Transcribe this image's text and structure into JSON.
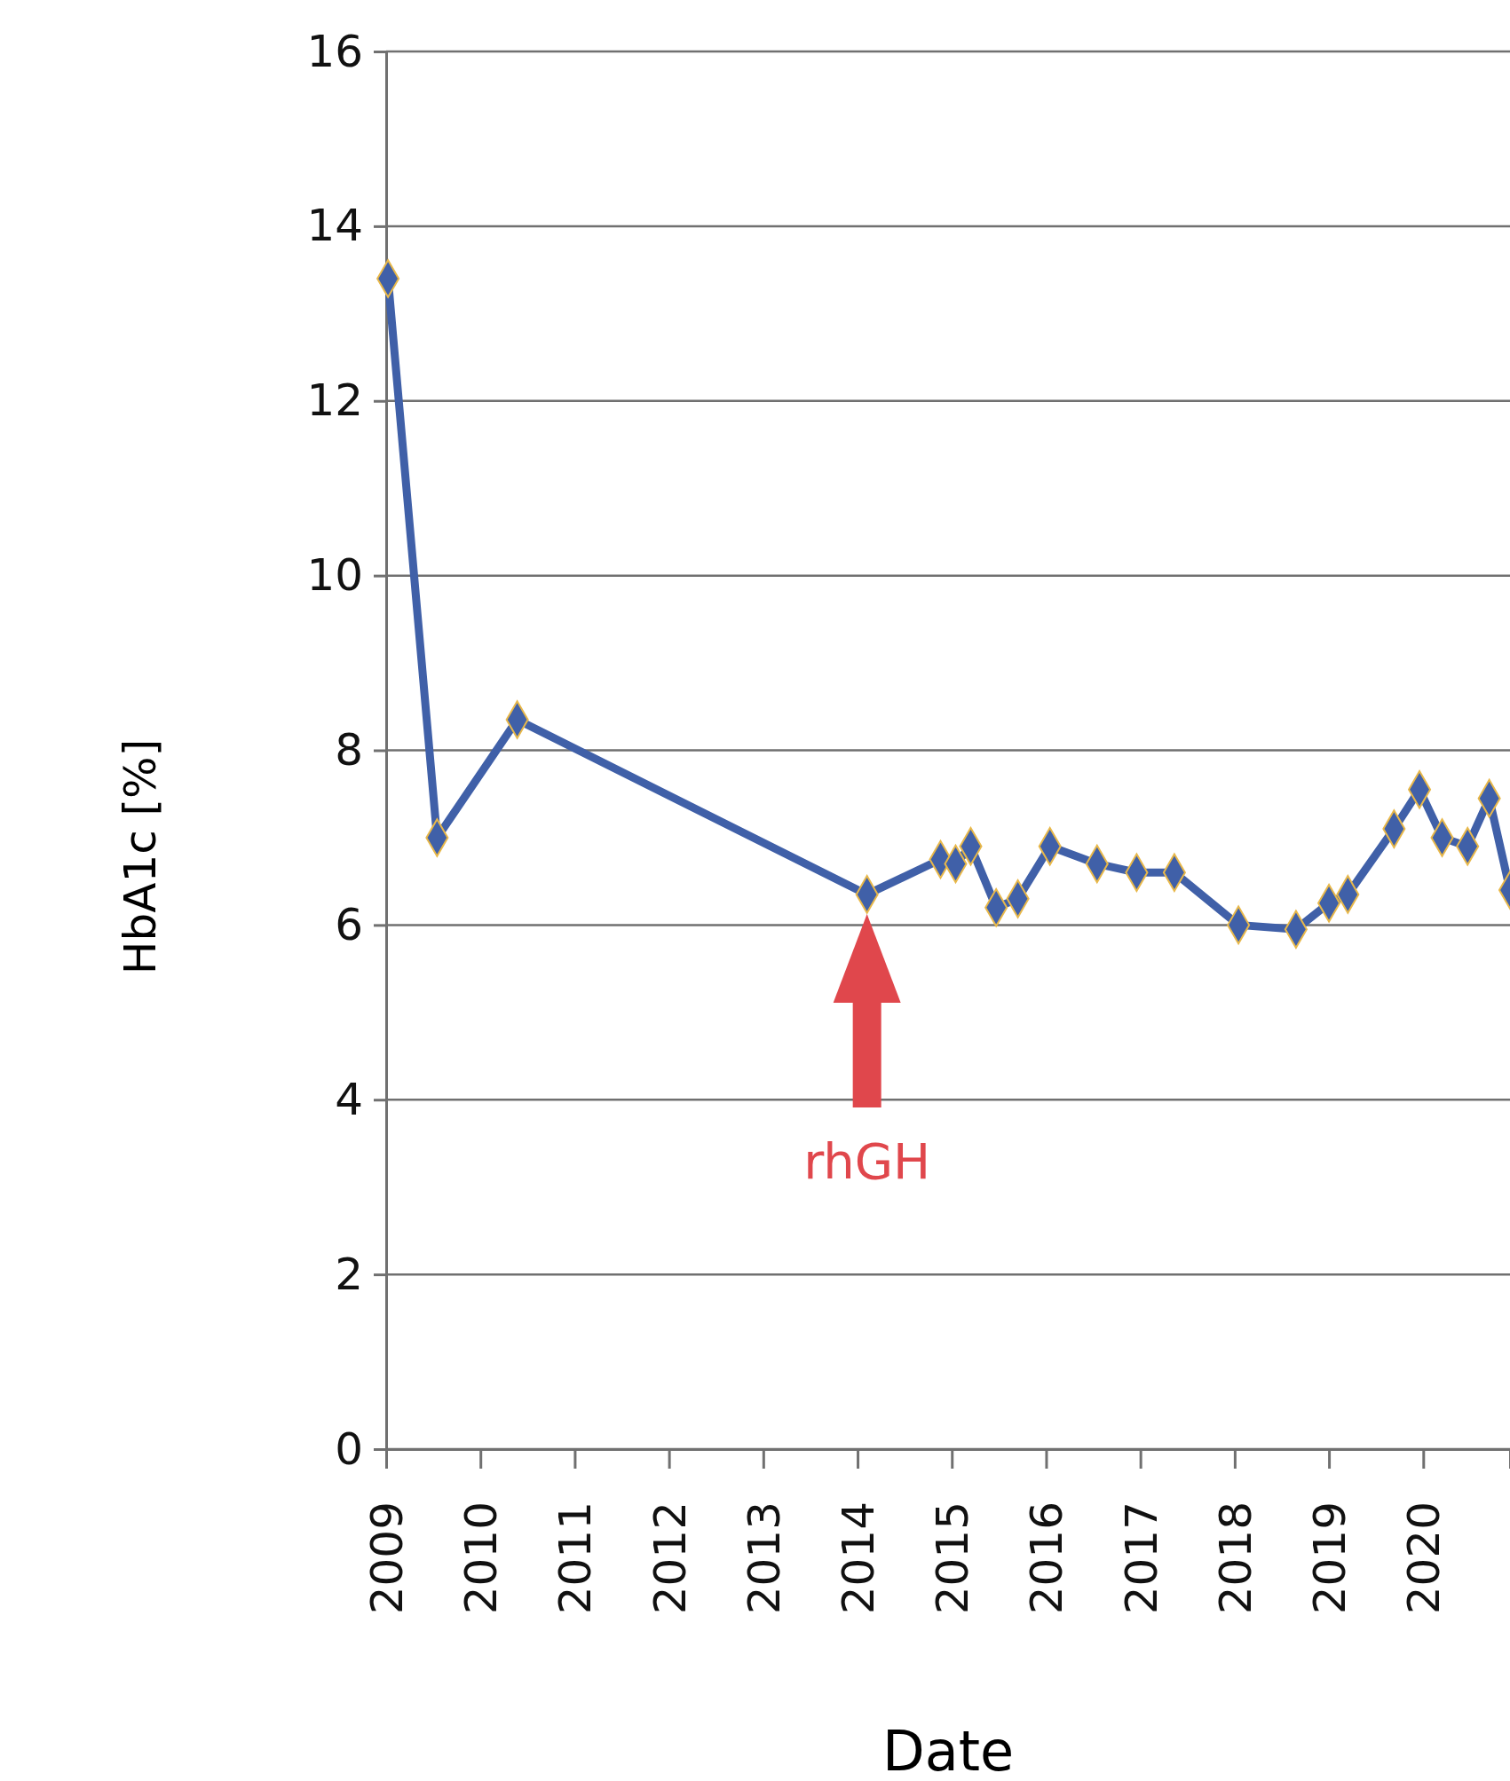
{
  "chart_data": {
    "type": "line",
    "xlabel": "Date",
    "ylabel": "HbA1c [%]",
    "x": [
      2009.02,
      2009.54,
      2010.39,
      2014.1,
      2014.88,
      2015.04,
      2015.2,
      2015.47,
      2015.7,
      2016.04,
      2016.54,
      2016.96,
      2017.36,
      2018.04,
      2018.65,
      2019.0,
      2019.2,
      2019.69,
      2019.96,
      2020.2,
      2020.47,
      2020.7,
      2020.92
    ],
    "series": [
      {
        "color": "#4060a8",
        "values": [
          13.4,
          7.0,
          8.35,
          6.35,
          6.75,
          6.7,
          6.9,
          6.2,
          6.3,
          6.9,
          6.7,
          6.6,
          6.6,
          6.0,
          5.95,
          6.25,
          6.35,
          7.1,
          7.55,
          7.0,
          6.9,
          7.45,
          6.4
        ]
      }
    ],
    "xlim": [
      2009,
      2020.92
    ],
    "xticks": [
      2009,
      2010,
      2011,
      2012,
      2013,
      2014,
      2015,
      2016,
      2017,
      2018,
      2019,
      2020
    ],
    "ylim": [
      0,
      16
    ],
    "yticks": [
      0,
      2,
      4,
      6,
      8,
      10,
      12,
      14,
      16
    ],
    "grid": "y",
    "marker": "diamond",
    "line_style": "solid",
    "ref_lines": [
      {
        "axis": "x",
        "value": 2014.1,
        "label": "rhGH",
        "color": "#e0474c"
      }
    ]
  }
}
